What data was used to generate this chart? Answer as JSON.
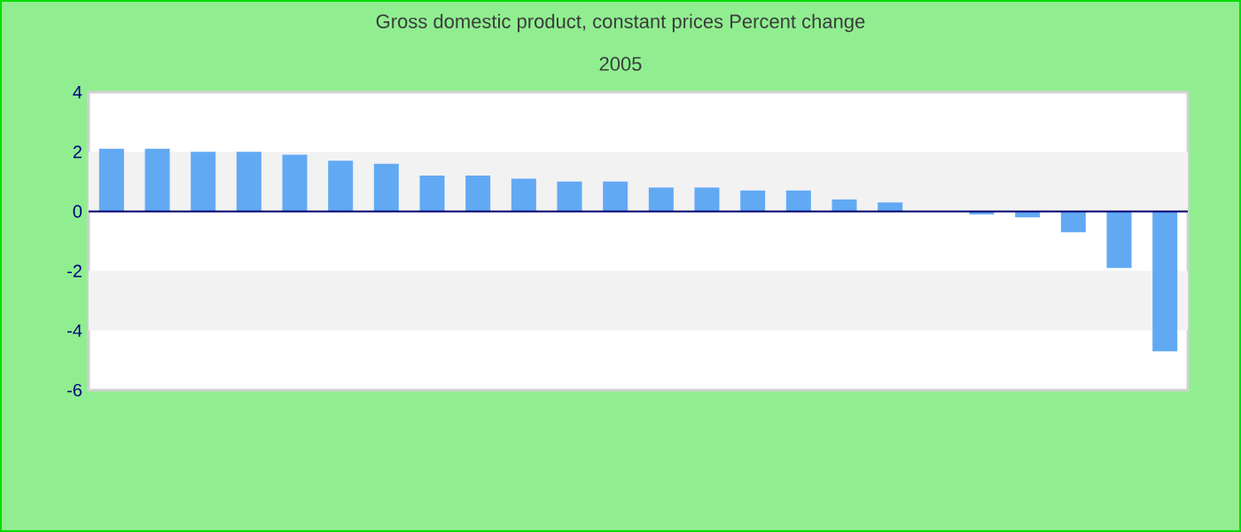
{
  "chart_data": {
    "type": "bar",
    "title": "Gross domestic product, constant prices  Percent change",
    "subtitle": "2005",
    "categories": [
      null,
      null,
      null,
      null,
      null,
      null,
      null,
      null,
      null,
      null,
      null,
      null,
      null,
      null,
      null,
      null,
      null,
      null,
      null,
      null,
      null,
      null,
      null,
      null
    ],
    "values": [
      2.1,
      2.1,
      2.0,
      2.0,
      1.9,
      1.7,
      1.6,
      1.2,
      1.2,
      1.1,
      1.0,
      1.0,
      0.8,
      0.8,
      0.7,
      0.7,
      0.4,
      0.3,
      null,
      -0.1,
      -0.2,
      -0.7,
      -1.9,
      -4.7
    ],
    "color": "#62a9f4",
    "ylim": [
      -6,
      4
    ],
    "yticks": [
      -6,
      -4,
      -2,
      0,
      2,
      4
    ],
    "bands": [
      {
        "axis": "y",
        "from": 0,
        "to": 2,
        "color": "#f2f2f2"
      },
      {
        "axis": "y",
        "from": -4,
        "to": -2,
        "color": "#f2f2f2"
      }
    ],
    "ref_lines": [
      {
        "axis": "y",
        "value": 0,
        "color": "#00006e"
      }
    ]
  }
}
